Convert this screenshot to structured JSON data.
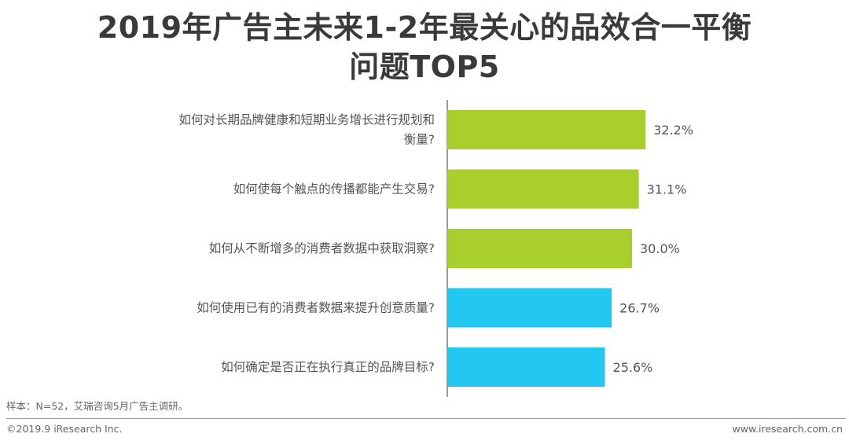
{
  "title_line1": "2019年广告主未来1-2年最关心的品效合一平衡",
  "title_line2": "问题TOP5",
  "chart_data": {
    "type": "bar",
    "orientation": "horizontal",
    "categories": [
      [
        "如何对长期品牌健康和短期业务增长进行规划和",
        "衡量?"
      ],
      [
        "如何使每个触点的传播都能产生交易?"
      ],
      [
        "如何从不断增多的消费者数据中获取洞察?"
      ],
      [
        "如何使用已有的消费者数据来提升创意质量?"
      ],
      [
        "如何确定是否正在执行真正的品牌目标?"
      ]
    ],
    "values": [
      32.2,
      31.1,
      30.0,
      26.7,
      25.6
    ],
    "value_labels": [
      "32.2%",
      "31.1%",
      "30.0%",
      "26.7%",
      "25.6%"
    ],
    "bar_colors": [
      "#a8cf2e",
      "#a8cf2e",
      "#a8cf2e",
      "#22c8f0",
      "#22c8f0"
    ],
    "xlim": [
      0,
      60
    ],
    "grid": false,
    "legend": "none"
  },
  "footer": {
    "sample_note": "样本：N=52，艾瑞咨询5月广告主调研。",
    "copyright": "©2019.9 iResearch Inc.",
    "website": "www.iresearch.com.cn"
  }
}
